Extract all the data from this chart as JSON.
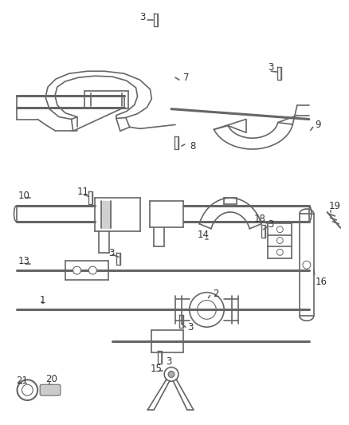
{
  "background_color": "#ffffff",
  "line_color": "#666666",
  "label_color": "#333333",
  "figsize": [
    4.38,
    5.33
  ],
  "dpi": 100,
  "lw_rod": 2.2,
  "lw_part": 1.2,
  "lw_thin": 0.8
}
